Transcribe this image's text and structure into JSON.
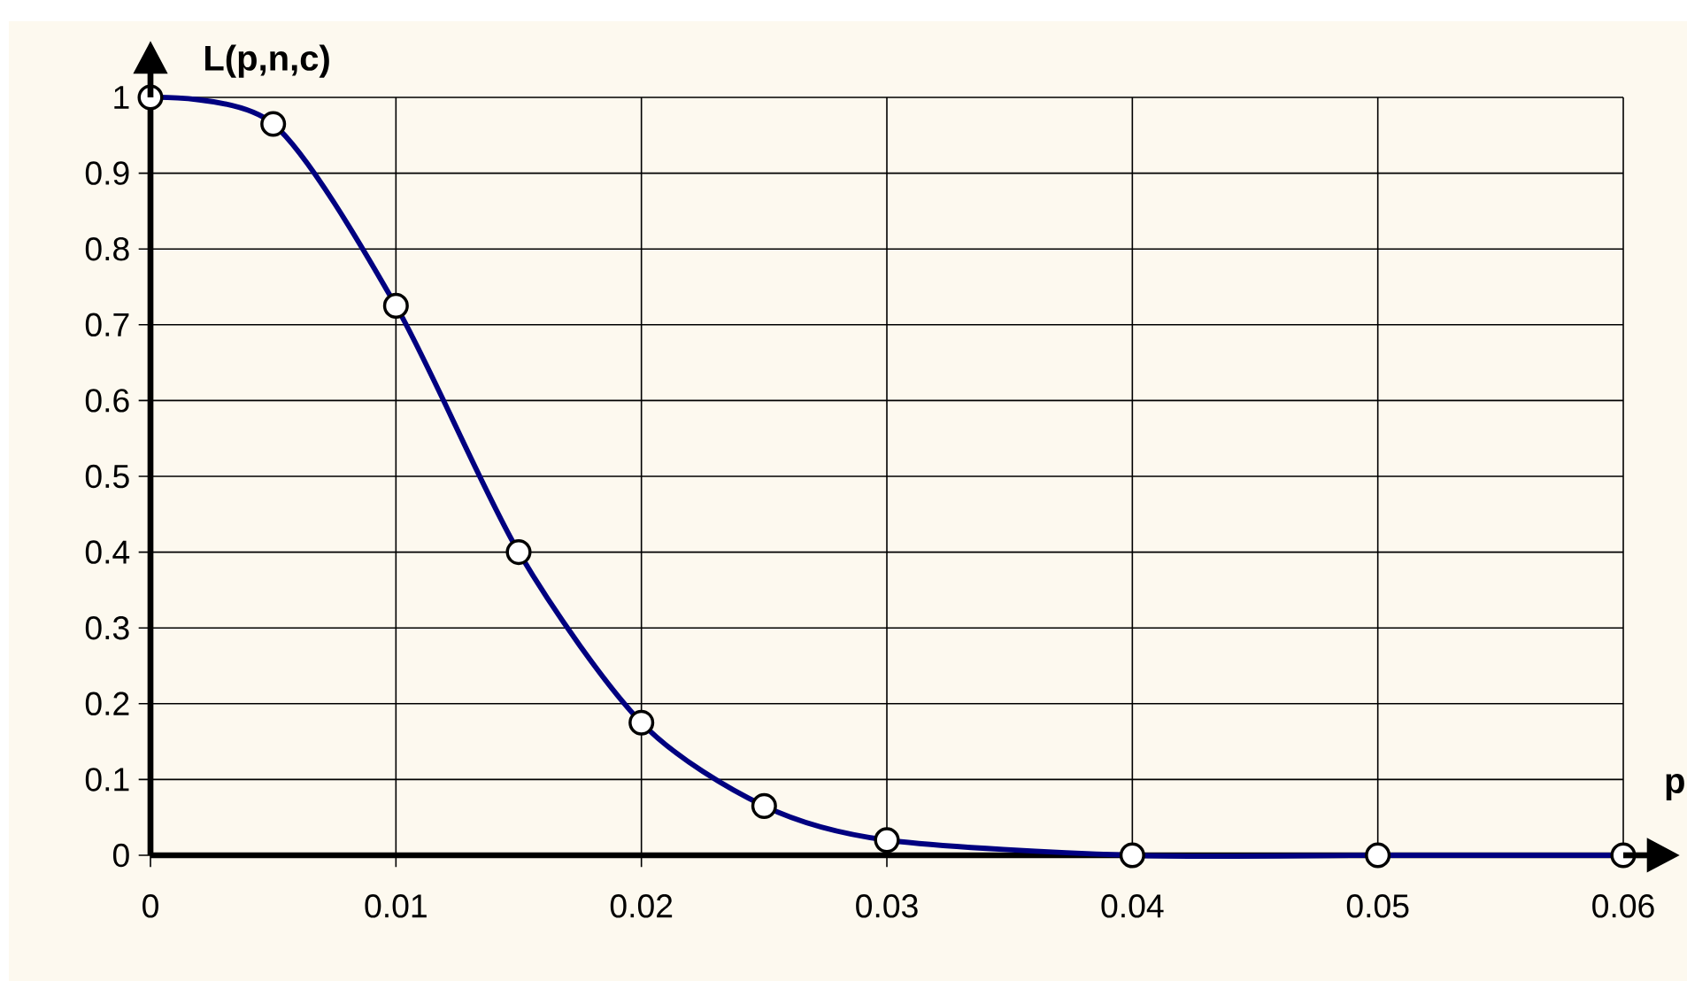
{
  "chart_data": {
    "type": "line",
    "xlabel": "p",
    "ylabel": "L(p,n,c)",
    "x": [
      0,
      0.005,
      0.01,
      0.015,
      0.02,
      0.025,
      0.03,
      0.04,
      0.05,
      0.06
    ],
    "series": [
      {
        "color": "#000080",
        "values": [
          1,
          0.965,
          0.725,
          0.4,
          0.175,
          0.065,
          0.02,
          0,
          0,
          0
        ]
      }
    ],
    "xlim": [
      0,
      0.06
    ],
    "ylim": [
      0,
      1
    ],
    "xticks": [
      0,
      0.01,
      0.02,
      0.03,
      0.04,
      0.05,
      0.06
    ],
    "yticks": [
      0,
      0.1,
      0.2,
      0.3,
      0.4,
      0.5,
      0.6,
      0.7,
      0.8,
      0.9,
      1
    ],
    "grid": true,
    "marker": "circle",
    "line_style": "solid"
  }
}
